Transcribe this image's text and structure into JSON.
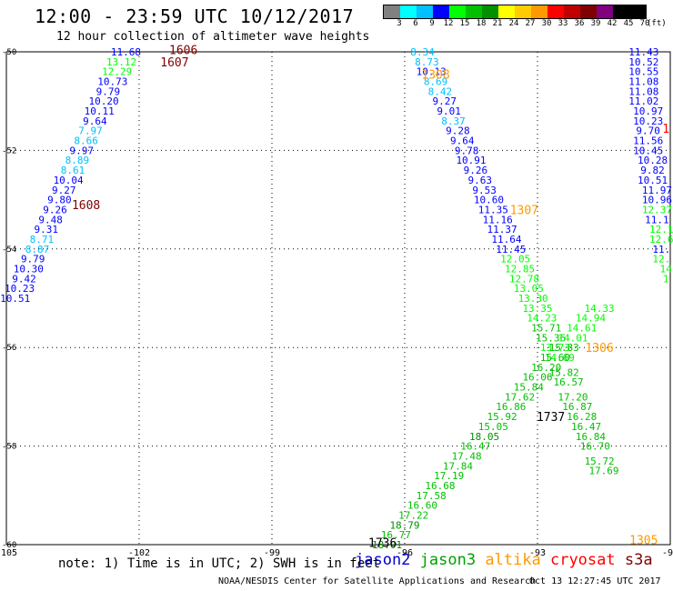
{
  "header": {
    "title": "12:00 - 23:59 UTC 10/12/2017",
    "subtitle": "12 hour collection of altimeter wave heights"
  },
  "color_legend": {
    "unit": "(ft)",
    "ticks": [
      "3",
      "6",
      "9",
      "12",
      "15",
      "18",
      "21",
      "24",
      "27",
      "30",
      "33",
      "36",
      "39",
      "42",
      "45",
      "70"
    ],
    "colors": [
      "#808080",
      "#00ffff",
      "#00c0ff",
      "#0000ff",
      "#00ff00",
      "#00c000",
      "#009000",
      "#ffff00",
      "#ffcc00",
      "#ff9900",
      "#ff0000",
      "#c00000",
      "#800000",
      "#800080",
      "#000000",
      "#000000"
    ]
  },
  "footer": {
    "note": "note: 1) Time is in UTC; 2) SWH is in feet",
    "missions": [
      {
        "name": "jason2",
        "color": "#0000cc"
      },
      {
        "name": "jason3",
        "color": "#00a000"
      },
      {
        "name": "altika",
        "color": "#ff9900"
      },
      {
        "name": "cryosat",
        "color": "#ff0000"
      },
      {
        "name": "s3a",
        "color": "#800000"
      }
    ],
    "credit": "NOAA/NESDIS Center for Satellite Applications and Research",
    "timestamp": "Oct 13 12:27:45 UTC 2017"
  },
  "chart_data": {
    "type": "scatter",
    "title": "12:00 - 23:59 UTC 10/12/2017",
    "subtitle": "12 hour collection of altimeter wave heights",
    "xlim": [
      -105,
      -90
    ],
    "ylim": [
      -60,
      -50
    ],
    "x_ticks": [
      -105,
      -102,
      -99,
      -96,
      -93,
      -90
    ],
    "y_ticks": [
      -50,
      -52,
      -54,
      -56,
      -58,
      -60
    ],
    "x_tick_labels": [
      "-105",
      "-102",
      "-99",
      "-96",
      "-93",
      "-90"
    ],
    "y_tick_labels": [
      "-50",
      "-52",
      "-54",
      "-56",
      "-58",
      "-60"
    ],
    "grid": true,
    "points": [
      {
        "lon": -102.3,
        "lat": -50.0,
        "v": "11.68",
        "c": "#0000ff"
      },
      {
        "lon": -102.4,
        "lat": -50.2,
        "v": "13.12",
        "c": "#00ff00"
      },
      {
        "lon": -102.5,
        "lat": -50.4,
        "v": "12.29",
        "c": "#00ff00"
      },
      {
        "lon": -102.6,
        "lat": -50.6,
        "v": "10.73",
        "c": "#0000ff"
      },
      {
        "lon": -102.7,
        "lat": -50.8,
        "v": "9.79",
        "c": "#0000ff"
      },
      {
        "lon": -102.8,
        "lat": -51.0,
        "v": "10.20",
        "c": "#0000ff"
      },
      {
        "lon": -102.9,
        "lat": -51.2,
        "v": "10.11",
        "c": "#0000ff"
      },
      {
        "lon": -103.0,
        "lat": -51.4,
        "v": "9.64",
        "c": "#0000ff"
      },
      {
        "lon": -103.1,
        "lat": -51.6,
        "v": "7.97",
        "c": "#00c0ff"
      },
      {
        "lon": -103.2,
        "lat": -51.8,
        "v": "8.66",
        "c": "#00c0ff"
      },
      {
        "lon": -103.3,
        "lat": -52.0,
        "v": "9.97",
        "c": "#0000ff"
      },
      {
        "lon": -103.4,
        "lat": -52.2,
        "v": "8.89",
        "c": "#00c0ff"
      },
      {
        "lon": -103.5,
        "lat": -52.4,
        "v": "8.61",
        "c": "#00c0ff"
      },
      {
        "lon": -103.6,
        "lat": -52.6,
        "v": "10.04",
        "c": "#0000ff"
      },
      {
        "lon": -103.7,
        "lat": -52.8,
        "v": "9.27",
        "c": "#0000ff"
      },
      {
        "lon": -103.8,
        "lat": -53.0,
        "v": "9.80",
        "c": "#0000ff"
      },
      {
        "lon": -103.9,
        "lat": -53.2,
        "v": "9.26",
        "c": "#0000ff"
      },
      {
        "lon": -104.0,
        "lat": -53.4,
        "v": "9.48",
        "c": "#0000ff"
      },
      {
        "lon": -104.1,
        "lat": -53.6,
        "v": "9.31",
        "c": "#0000ff"
      },
      {
        "lon": -104.2,
        "lat": -53.8,
        "v": "8.71",
        "c": "#00c0ff"
      },
      {
        "lon": -104.3,
        "lat": -54.0,
        "v": "8.87",
        "c": "#00c0ff"
      },
      {
        "lon": -104.4,
        "lat": -54.2,
        "v": "9.79",
        "c": "#0000ff"
      },
      {
        "lon": -104.5,
        "lat": -54.4,
        "v": "10.30",
        "c": "#0000ff"
      },
      {
        "lon": -104.6,
        "lat": -54.6,
        "v": "9.42",
        "c": "#0000ff"
      },
      {
        "lon": -104.7,
        "lat": -54.8,
        "v": "10.23",
        "c": "#0000ff"
      },
      {
        "lon": -104.8,
        "lat": -55.0,
        "v": "10.51",
        "c": "#0000ff"
      },
      {
        "lon": -95.6,
        "lat": -50.0,
        "v": "8.34",
        "c": "#00c0ff"
      },
      {
        "lon": -95.5,
        "lat": -50.2,
        "v": "8.73",
        "c": "#00c0ff"
      },
      {
        "lon": -95.4,
        "lat": -50.4,
        "v": "10.13",
        "c": "#0000ff"
      },
      {
        "lon": -95.3,
        "lat": -50.6,
        "v": "8.69",
        "c": "#00c0ff"
      },
      {
        "lon": -95.2,
        "lat": -50.8,
        "v": "8.42",
        "c": "#00c0ff"
      },
      {
        "lon": -95.1,
        "lat": -51.0,
        "v": "9.27",
        "c": "#0000ff"
      },
      {
        "lon": -95.0,
        "lat": -51.2,
        "v": "9.01",
        "c": "#0000ff"
      },
      {
        "lon": -94.9,
        "lat": -51.4,
        "v": "8.37",
        "c": "#00c0ff"
      },
      {
        "lon": -94.8,
        "lat": -51.6,
        "v": "9.28",
        "c": "#0000ff"
      },
      {
        "lon": -94.7,
        "lat": -51.8,
        "v": "9.64",
        "c": "#0000ff"
      },
      {
        "lon": -94.6,
        "lat": -52.0,
        "v": "9.78",
        "c": "#0000ff"
      },
      {
        "lon": -94.5,
        "lat": -52.2,
        "v": "10.91",
        "c": "#0000ff"
      },
      {
        "lon": -94.4,
        "lat": -52.4,
        "v": "9.26",
        "c": "#0000ff"
      },
      {
        "lon": -94.3,
        "lat": -52.6,
        "v": "9.63",
        "c": "#0000ff"
      },
      {
        "lon": -94.2,
        "lat": -52.8,
        "v": "9.53",
        "c": "#0000ff"
      },
      {
        "lon": -94.1,
        "lat": -53.0,
        "v": "10.60",
        "c": "#0000ff"
      },
      {
        "lon": -94.0,
        "lat": -53.2,
        "v": "11.35",
        "c": "#0000ff"
      },
      {
        "lon": -93.9,
        "lat": -53.4,
        "v": "11.16",
        "c": "#0000ff"
      },
      {
        "lon": -93.8,
        "lat": -53.6,
        "v": "11.37",
        "c": "#0000ff"
      },
      {
        "lon": -93.7,
        "lat": -53.8,
        "v": "11.64",
        "c": "#0000ff"
      },
      {
        "lon": -93.6,
        "lat": -54.0,
        "v": "11.45",
        "c": "#0000ff"
      },
      {
        "lon": -93.5,
        "lat": -54.2,
        "v": "12.05",
        "c": "#00ff00"
      },
      {
        "lon": -93.4,
        "lat": -54.4,
        "v": "12.85",
        "c": "#00ff00"
      },
      {
        "lon": -93.3,
        "lat": -54.6,
        "v": "12.78",
        "c": "#00ff00"
      },
      {
        "lon": -93.2,
        "lat": -54.8,
        "v": "13.05",
        "c": "#00ff00"
      },
      {
        "lon": -93.1,
        "lat": -55.0,
        "v": "13.30",
        "c": "#00ff00"
      },
      {
        "lon": -93.0,
        "lat": -55.2,
        "v": "13.35",
        "c": "#00ff00"
      },
      {
        "lon": -92.9,
        "lat": -55.4,
        "v": "14.23",
        "c": "#00ff00"
      },
      {
        "lon": -92.8,
        "lat": -55.6,
        "v": "15.71",
        "c": "#00c000"
      },
      {
        "lon": -92.7,
        "lat": -55.8,
        "v": "15.36",
        "c": "#00c000"
      },
      {
        "lon": -92.6,
        "lat": -56.0,
        "v": "13.73",
        "c": "#00ff00"
      },
      {
        "lon": -92.5,
        "lat": -56.2,
        "v": "14.69",
        "c": "#00ff00"
      },
      {
        "lon": -92.4,
        "lat": -56.5,
        "v": "15.82",
        "c": "#00c000"
      },
      {
        "lon": -92.3,
        "lat": -56.7,
        "v": "16.57",
        "c": "#00c000"
      },
      {
        "lon": -92.2,
        "lat": -57.0,
        "v": "17.20",
        "c": "#00c000"
      },
      {
        "lon": -92.1,
        "lat": -57.2,
        "v": "16.87",
        "c": "#00c000"
      },
      {
        "lon": -92.0,
        "lat": -57.4,
        "v": "16.28",
        "c": "#00c000"
      },
      {
        "lon": -91.9,
        "lat": -57.6,
        "v": "16.47",
        "c": "#00c000"
      },
      {
        "lon": -91.8,
        "lat": -57.8,
        "v": "16.84",
        "c": "#00c000"
      },
      {
        "lon": -91.7,
        "lat": -58.0,
        "v": "16.70",
        "c": "#00c000"
      },
      {
        "lon": -91.6,
        "lat": -58.3,
        "v": "15.72",
        "c": "#00c000"
      },
      {
        "lon": -91.5,
        "lat": -58.5,
        "v": "17.69",
        "c": "#00c000"
      },
      {
        "lon": -96.4,
        "lat": -60.0,
        "v": "18.01",
        "c": "#009000"
      },
      {
        "lon": -96.2,
        "lat": -59.8,
        "v": "16.77",
        "c": "#00c000"
      },
      {
        "lon": -96.0,
        "lat": -59.6,
        "v": "18.79",
        "c": "#009000"
      },
      {
        "lon": -95.8,
        "lat": -59.4,
        "v": "17.22",
        "c": "#00c000"
      },
      {
        "lon": -95.6,
        "lat": -59.2,
        "v": "16.60",
        "c": "#00c000"
      },
      {
        "lon": -95.4,
        "lat": -59.0,
        "v": "17.58",
        "c": "#00c000"
      },
      {
        "lon": -95.2,
        "lat": -58.8,
        "v": "16.68",
        "c": "#00c000"
      },
      {
        "lon": -95.0,
        "lat": -58.6,
        "v": "17.19",
        "c": "#00c000"
      },
      {
        "lon": -94.8,
        "lat": -58.4,
        "v": "17.84",
        "c": "#00c000"
      },
      {
        "lon": -94.6,
        "lat": -58.2,
        "v": "17.48",
        "c": "#00c000"
      },
      {
        "lon": -94.4,
        "lat": -58.0,
        "v": "16.47",
        "c": "#00c000"
      },
      {
        "lon": -94.2,
        "lat": -57.8,
        "v": "18.05",
        "c": "#009000"
      },
      {
        "lon": -94.0,
        "lat": -57.6,
        "v": "15.05",
        "c": "#00c000"
      },
      {
        "lon": -93.8,
        "lat": -57.4,
        "v": "15.92",
        "c": "#00c000"
      },
      {
        "lon": -93.6,
        "lat": -57.2,
        "v": "16.86",
        "c": "#00c000"
      },
      {
        "lon": -93.4,
        "lat": -57.0,
        "v": "17.62",
        "c": "#00c000"
      },
      {
        "lon": -93.2,
        "lat": -56.8,
        "v": "15.84",
        "c": "#00c000"
      },
      {
        "lon": -93.0,
        "lat": -56.6,
        "v": "16.06",
        "c": "#00c000"
      },
      {
        "lon": -92.8,
        "lat": -56.4,
        "v": "16.20",
        "c": "#00c000"
      },
      {
        "lon": -92.6,
        "lat": -56.2,
        "v": "15.60",
        "c": "#00c000"
      },
      {
        "lon": -92.4,
        "lat": -56.0,
        "v": "15.83",
        "c": "#00c000"
      },
      {
        "lon": -92.2,
        "lat": -55.8,
        "v": "14.01",
        "c": "#00ff00"
      },
      {
        "lon": -92.0,
        "lat": -55.6,
        "v": "14.61",
        "c": "#00ff00"
      },
      {
        "lon": -91.8,
        "lat": -55.4,
        "v": "14.94",
        "c": "#00ff00"
      },
      {
        "lon": -91.6,
        "lat": -55.2,
        "v": "14.33",
        "c": "#00ff00"
      },
      {
        "lon": -90.6,
        "lat": -50.0,
        "v": "11.43",
        "c": "#0000ff"
      },
      {
        "lon": -90.6,
        "lat": -50.2,
        "v": "10.52",
        "c": "#0000ff"
      },
      {
        "lon": -90.6,
        "lat": -50.4,
        "v": "10.55",
        "c": "#0000ff"
      },
      {
        "lon": -90.6,
        "lat": -50.6,
        "v": "11.08",
        "c": "#0000ff"
      },
      {
        "lon": -90.6,
        "lat": -50.8,
        "v": "11.08",
        "c": "#0000ff"
      },
      {
        "lon": -90.6,
        "lat": -51.0,
        "v": "11.02",
        "c": "#0000ff"
      },
      {
        "lon": -90.5,
        "lat": -51.2,
        "v": "10.97",
        "c": "#0000ff"
      },
      {
        "lon": -90.5,
        "lat": -51.4,
        "v": "10.23",
        "c": "#0000ff"
      },
      {
        "lon": -90.5,
        "lat": -51.6,
        "v": "9.70",
        "c": "#0000ff"
      },
      {
        "lon": -90.5,
        "lat": -51.8,
        "v": "11.56",
        "c": "#0000ff"
      },
      {
        "lon": -90.5,
        "lat": -52.0,
        "v": "10.45",
        "c": "#0000ff"
      },
      {
        "lon": -90.4,
        "lat": -52.2,
        "v": "10.28",
        "c": "#0000ff"
      },
      {
        "lon": -90.4,
        "lat": -52.4,
        "v": "9.82",
        "c": "#0000ff"
      },
      {
        "lon": -90.4,
        "lat": -52.6,
        "v": "10.51",
        "c": "#0000ff"
      },
      {
        "lon": -90.3,
        "lat": -52.8,
        "v": "11.97",
        "c": "#0000ff"
      },
      {
        "lon": -90.3,
        "lat": -53.0,
        "v": "10.96",
        "c": "#0000ff"
      },
      {
        "lon": -90.3,
        "lat": -53.2,
        "v": "12.37",
        "c": "#00ff00"
      },
      {
        "lon": -90.3,
        "lat": -53.4,
        "v": "11.1",
        "c": "#0000ff"
      },
      {
        "lon": -90.2,
        "lat": -53.6,
        "v": "12.1",
        "c": "#00ff00"
      },
      {
        "lon": -90.2,
        "lat": -53.8,
        "v": "12.6",
        "c": "#00ff00"
      },
      {
        "lon": -90.2,
        "lat": -54.0,
        "v": "11.",
        "c": "#0000ff"
      },
      {
        "lon": -90.2,
        "lat": -54.2,
        "v": "12.",
        "c": "#00ff00"
      },
      {
        "lon": -90.1,
        "lat": -54.4,
        "v": "14",
        "c": "#00ff00"
      },
      {
        "lon": -90.1,
        "lat": -54.6,
        "v": "1",
        "c": "#00ff00"
      }
    ],
    "time_labels": [
      {
        "lon": -101.0,
        "lat": -49.95,
        "v": "1606",
        "c": "#800000"
      },
      {
        "lon": -101.2,
        "lat": -50.2,
        "v": "1607",
        "c": "#800000"
      },
      {
        "lon": -103.2,
        "lat": -53.1,
        "v": "1608",
        "c": "#800000"
      },
      {
        "lon": -95.3,
        "lat": -50.45,
        "v": "1308",
        "c": "#ff9900"
      },
      {
        "lon": -93.3,
        "lat": -53.2,
        "v": "1307",
        "c": "#ff9900"
      },
      {
        "lon": -91.6,
        "lat": -56.0,
        "v": "1306",
        "c": "#ff9900"
      },
      {
        "lon": -90.6,
        "lat": -59.9,
        "v": "1305",
        "c": "#ff9900"
      },
      {
        "lon": -92.7,
        "lat": -57.4,
        "v": "1737",
        "c": "#000000"
      },
      {
        "lon": -96.5,
        "lat": -59.95,
        "v": "1736",
        "c": "#000000"
      },
      {
        "lon": -90.1,
        "lat": -51.55,
        "v": "1",
        "c": "#ff0000"
      }
    ]
  }
}
